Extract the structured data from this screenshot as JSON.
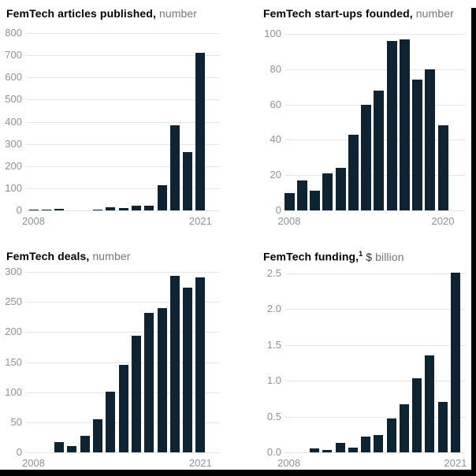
{
  "colors": {
    "bar": "#0e2433",
    "grid": "#e5e6e7",
    "axis_label": "#8c9196",
    "title": "#000000",
    "unit_text": "#767676",
    "screen_edge": "#020203"
  },
  "chart_data": [
    {
      "type": "bar",
      "title": "FemTech articles published,",
      "title_sup": "",
      "unit_prefix": "",
      "unit": "number",
      "x": [
        2008,
        2009,
        2010,
        2011,
        2012,
        2013,
        2014,
        2015,
        2016,
        2017,
        2018,
        2019,
        2020,
        2021
      ],
      "values": [
        1,
        1,
        6,
        0,
        0,
        2,
        13,
        10,
        20,
        22,
        115,
        385,
        262,
        710
      ],
      "ylim": [
        0,
        800
      ],
      "yticks": [
        0,
        100,
        200,
        300,
        400,
        500,
        600,
        700,
        800
      ],
      "ytick_labels": [
        "0",
        "100",
        "200",
        "300",
        "400",
        "500",
        "600",
        "700",
        "800"
      ],
      "xtick_labels": [
        "2008",
        "2021"
      ],
      "grid": true,
      "legend": "none"
    },
    {
      "type": "bar",
      "title": "FemTech start-ups founded,",
      "title_sup": "",
      "unit_prefix": "",
      "unit": "number",
      "x": [
        2008,
        2009,
        2010,
        2011,
        2012,
        2013,
        2014,
        2015,
        2016,
        2017,
        2018,
        2019,
        2020
      ],
      "values": [
        10,
        17,
        11,
        21,
        24,
        43,
        60,
        68,
        96,
        97,
        74,
        80,
        48
      ],
      "ylim": [
        0,
        100
      ],
      "yticks": [
        0,
        20,
        40,
        60,
        80,
        100
      ],
      "ytick_labels": [
        "0",
        "20",
        "40",
        "60",
        "80",
        "100"
      ],
      "xtick_labels": [
        "2008",
        "2020"
      ],
      "grid": true,
      "legend": "none"
    },
    {
      "type": "bar",
      "title": "FemTech deals,",
      "title_sup": "",
      "unit_prefix": "",
      "unit": "number",
      "x": [
        2008,
        2009,
        2010,
        2011,
        2012,
        2013,
        2014,
        2015,
        2016,
        2017,
        2018,
        2019,
        2020,
        2021
      ],
      "values": [
        0,
        0,
        17,
        11,
        27,
        55,
        101,
        146,
        194,
        232,
        240,
        293,
        274,
        291
      ],
      "ylim": [
        0,
        300
      ],
      "yticks": [
        0,
        50,
        100,
        150,
        200,
        250,
        300
      ],
      "ytick_labels": [
        "0",
        "50",
        "100",
        "150",
        "200",
        "250",
        "300"
      ],
      "xtick_labels": [
        "2008",
        "2021"
      ],
      "grid": true,
      "legend": "none"
    },
    {
      "type": "bar",
      "title": "FemTech funding,",
      "title_sup": "1",
      "unit_prefix": "$",
      "unit": "billion",
      "x": [
        2008,
        2009,
        2010,
        2011,
        2012,
        2013,
        2014,
        2015,
        2016,
        2017,
        2018,
        2019,
        2020,
        2021
      ],
      "values": [
        0,
        0,
        0.06,
        0.03,
        0.13,
        0.07,
        0.22,
        0.24,
        0.47,
        0.67,
        1.04,
        1.35,
        0.7,
        2.51
      ],
      "ylim": [
        0,
        2.5
      ],
      "yticks": [
        0,
        0.5,
        1.0,
        1.5,
        2.0,
        2.5
      ],
      "ytick_labels": [
        "0.0",
        "0.5",
        "1.0",
        "1.5",
        "2.0",
        "2.5"
      ],
      "xtick_labels": [
        "2008",
        "2021"
      ],
      "grid": true,
      "legend": "none"
    }
  ]
}
